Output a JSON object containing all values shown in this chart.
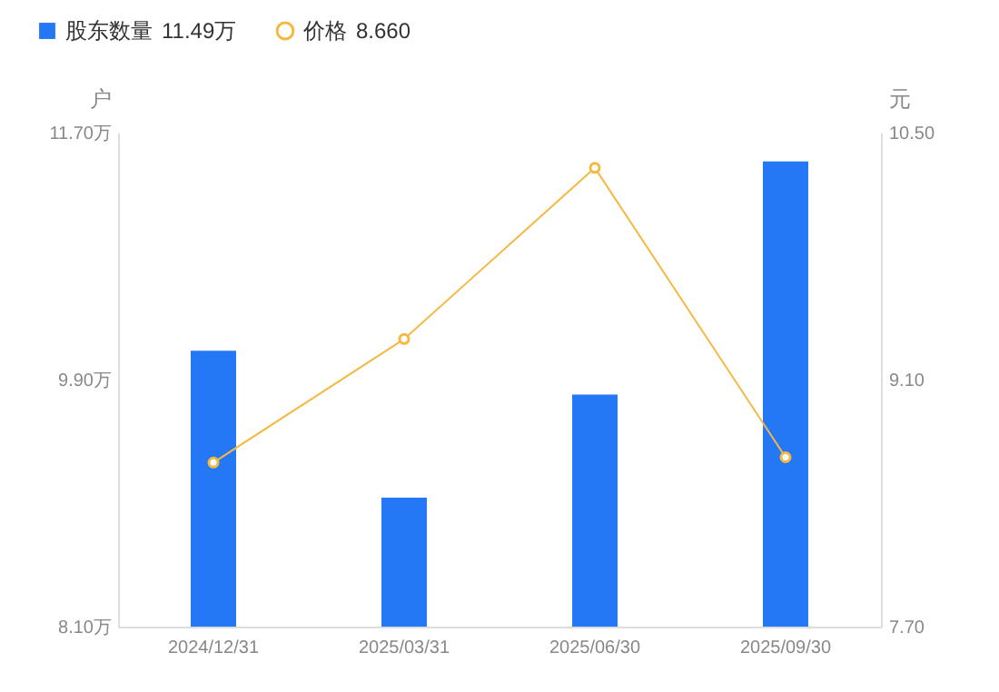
{
  "chart_data": {
    "type": "bar",
    "categories": [
      "2024/12/31",
      "2025/03/31",
      "2025/06/30",
      "2025/09/30"
    ],
    "series": [
      {
        "name": "股东数量",
        "color": "#2477f5",
        "values": [
          10.11,
          9.04,
          9.79,
          11.49
        ]
      },
      {
        "name": "价格",
        "type": "line",
        "axis": "y2",
        "color": "#f5b942",
        "values": [
          8.63,
          9.33,
          10.3,
          8.66
        ],
        "marker": "circle"
      }
    ],
    "annotations": [
      "11.49万",
      "8.660"
    ],
    "ylabel": "户",
    "y2label": "元",
    "ylim": [
      8.1,
      11.7
    ],
    "yticks": [
      {
        "value": 8.1,
        "label": "8.10万"
      },
      {
        "value": 9.9,
        "label": "9.90万"
      },
      {
        "value": 11.7,
        "label": "11.70万"
      }
    ],
    "y2lim": [
      7.7,
      10.5
    ],
    "y2ticks": [
      {
        "value": 7.7,
        "label": "7.70"
      },
      {
        "value": 9.1,
        "label": "9.10"
      },
      {
        "value": 10.5,
        "label": "10.50"
      }
    ],
    "grid": false,
    "legend": "top left"
  }
}
